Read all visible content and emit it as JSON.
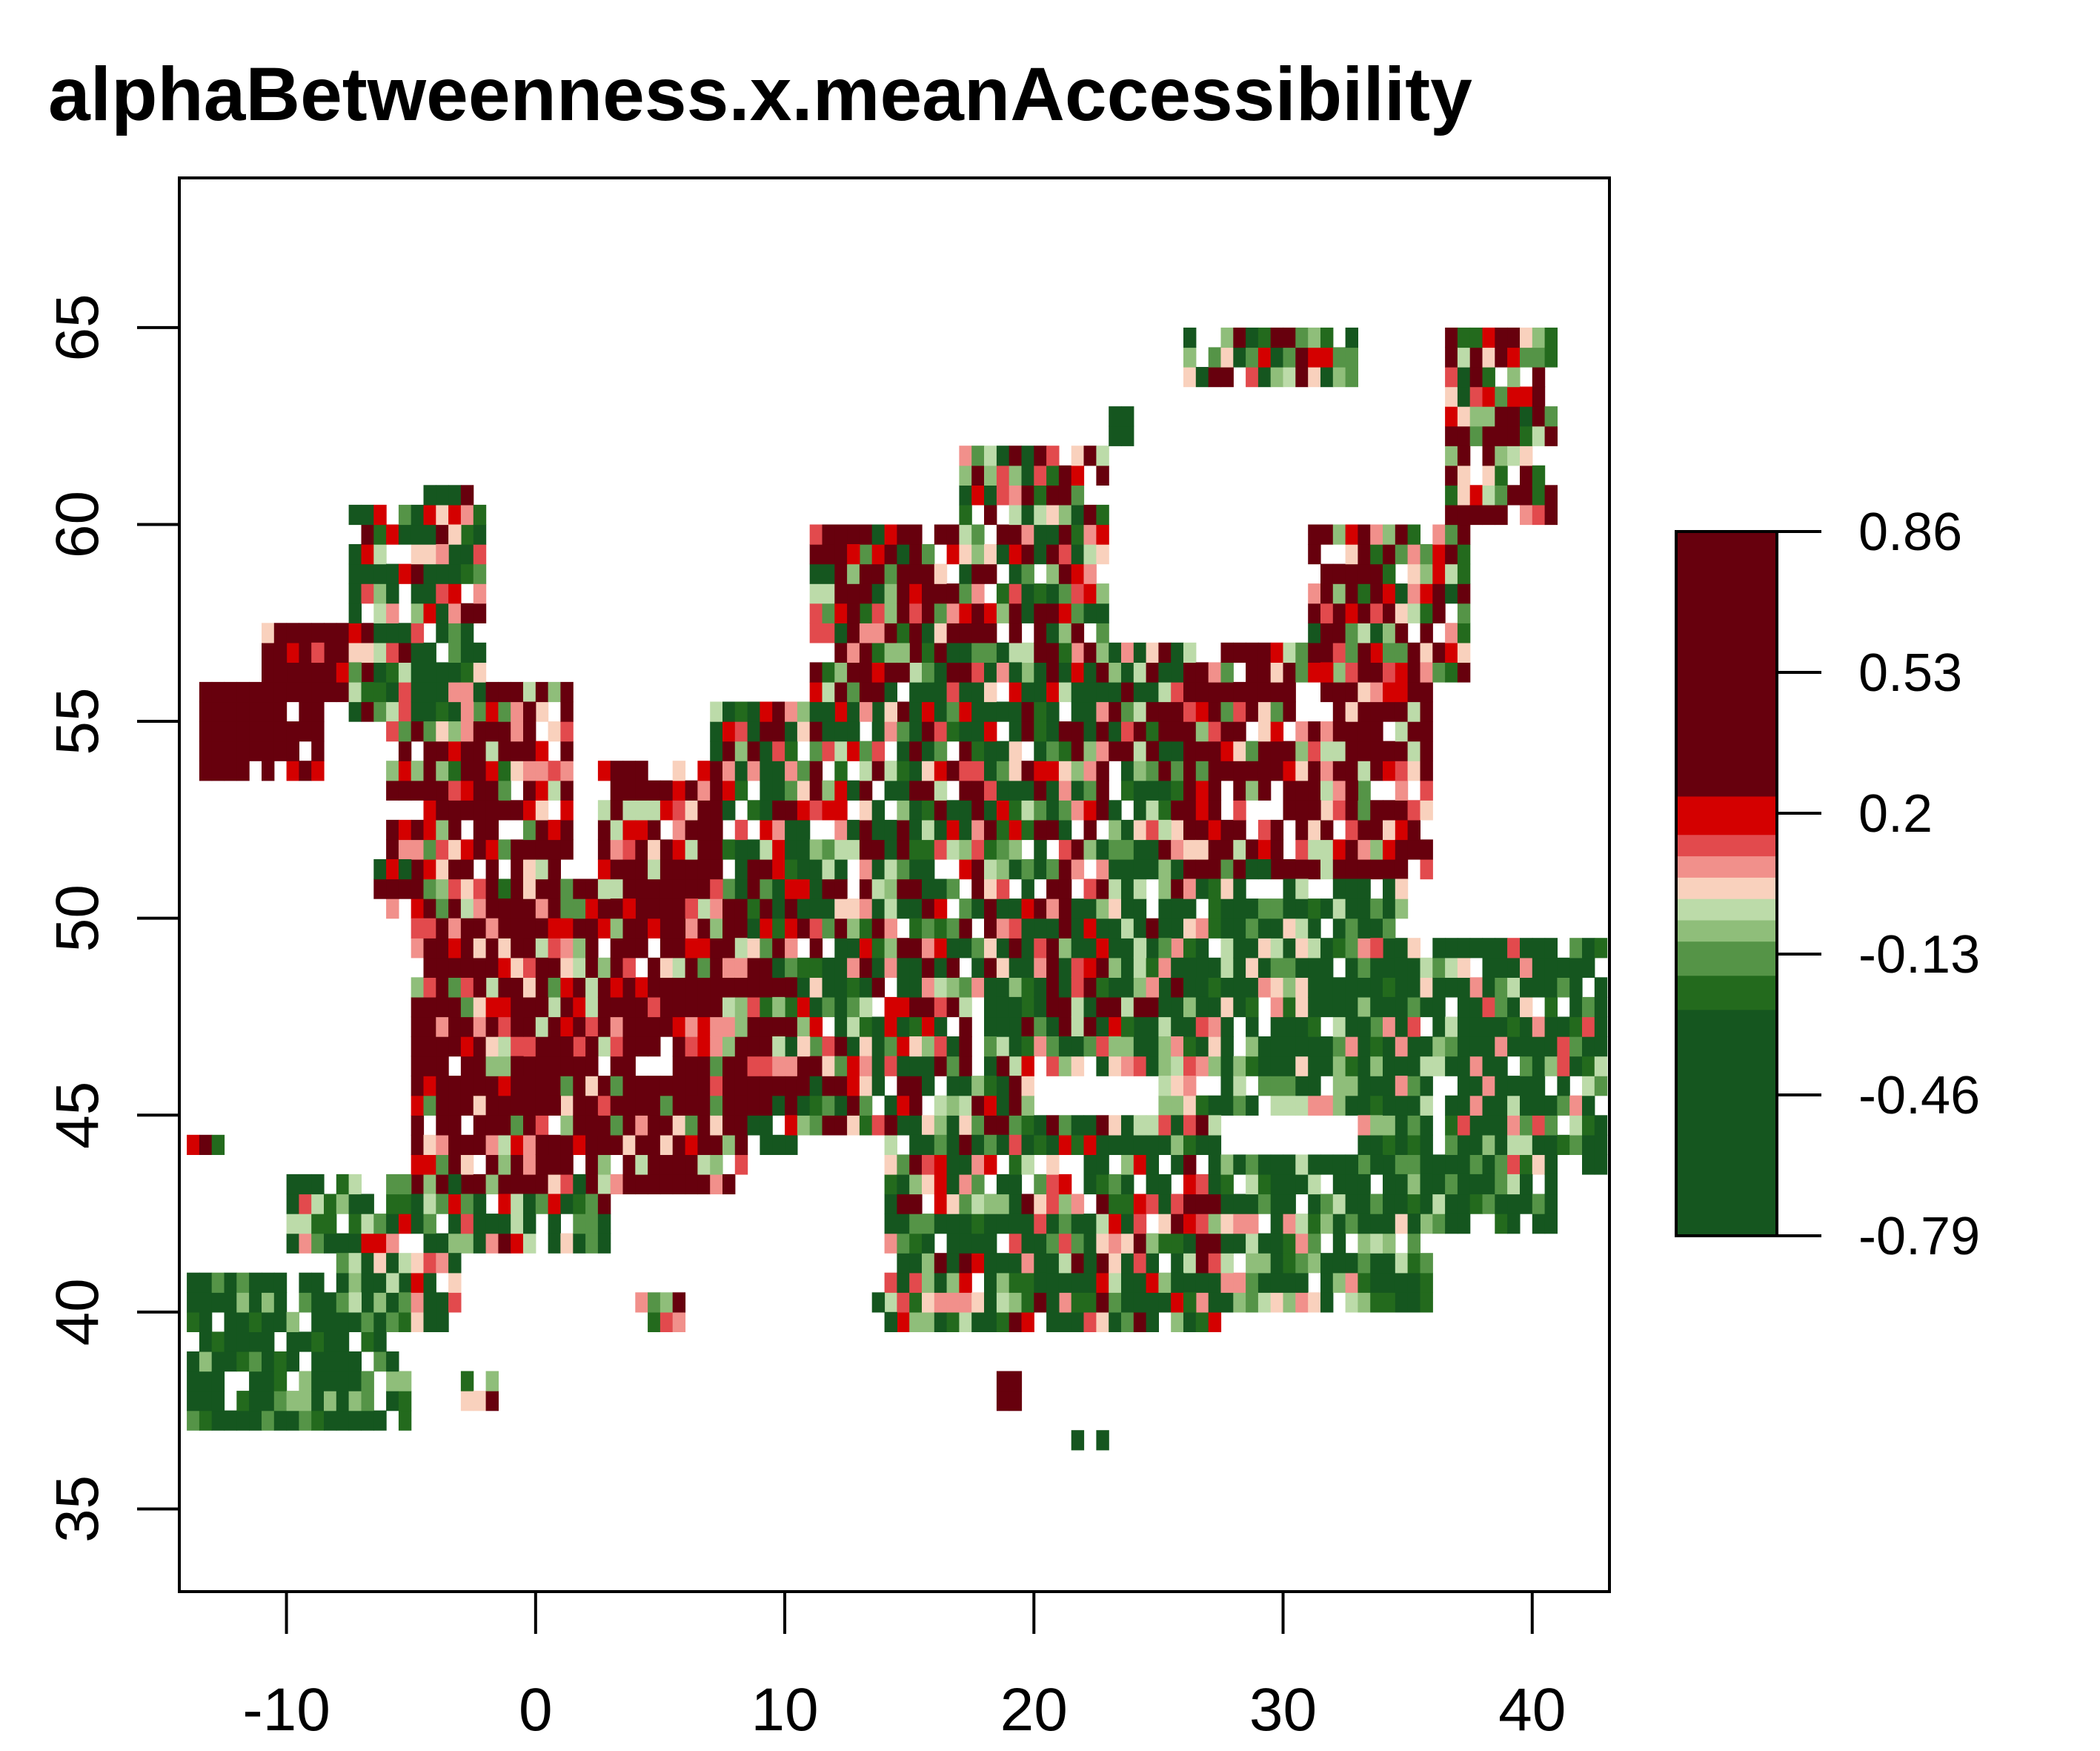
{
  "chart_data": {
    "type": "heatmap",
    "title": "alphaBetweenness.x.meanAccessibility",
    "xlabel": "",
    "ylabel": "",
    "xlim": [
      -14.3,
      43.1
    ],
    "ylim": [
      32.9,
      68.8
    ],
    "x_ticks": [
      -10,
      0,
      10,
      20,
      30,
      40
    ],
    "x_tick_labels": [
      "-10",
      "0",
      "10",
      "20",
      "30",
      "40"
    ],
    "y_ticks": [
      35,
      40,
      45,
      50,
      55,
      60,
      65
    ],
    "y_tick_labels": [
      "35",
      "40",
      "45",
      "50",
      "55",
      "60",
      "65"
    ],
    "cell_size_degrees": 0.5,
    "legend": {
      "position": "right",
      "range": [
        -0.79,
        0.86
      ],
      "ticks": [
        0.86,
        0.53,
        0.2,
        -0.13,
        -0.46,
        -0.79
      ],
      "tick_labels": [
        "0.86",
        "0.53",
        "0.2",
        "-0.13",
        "-0.46",
        "-0.79"
      ],
      "bins": [
        {
          "from": -0.79,
          "to": -0.26,
          "color": "#15561f"
        },
        {
          "from": -0.26,
          "to": -0.18,
          "color": "#236a1d"
        },
        {
          "from": -0.18,
          "to": -0.1,
          "color": "#559447"
        },
        {
          "from": -0.1,
          "to": -0.05,
          "color": "#8fbe7a"
        },
        {
          "from": -0.05,
          "to": 0.0,
          "color": "#bcdba9"
        },
        {
          "from": 0.0,
          "to": 0.05,
          "color": "#f9d1bd"
        },
        {
          "from": 0.05,
          "to": 0.1,
          "color": "#f1908b"
        },
        {
          "from": 0.1,
          "to": 0.15,
          "color": "#e24a4d"
        },
        {
          "from": 0.15,
          "to": 0.24,
          "color": "#d40000"
        },
        {
          "from": 0.24,
          "to": 0.86,
          "color": "#67000d"
        }
      ]
    },
    "regions": [
      {
        "x": [
          -13.5,
          -8.5
        ],
        "y": [
          53.5,
          56.0
        ],
        "center": 0.45,
        "spread": 0.25
      },
      {
        "x": [
          -10.0,
          -7.5
        ],
        "y": [
          55.5,
          57.5
        ],
        "center": 0.45,
        "spread": 0.25
      },
      {
        "x": [
          -11.0,
          -6.5
        ],
        "y": [
          56.0,
          57.5
        ],
        "center": 0.3,
        "spread": 0.4
      },
      {
        "x": [
          -7.5,
          -2.0
        ],
        "y": [
          55.0,
          60.5
        ],
        "center": -0.2,
        "spread": 0.5
      },
      {
        "x": [
          -4.5,
          -2.5
        ],
        "y": [
          59.0,
          61.0
        ],
        "center": 0.0,
        "spread": 0.6
      },
      {
        "x": [
          -6.0,
          1.5
        ],
        "y": [
          50.0,
          56.0
        ],
        "center": 0.3,
        "spread": 0.5
      },
      {
        "x": [
          -4.5,
          0.0
        ],
        "y": [
          52.5,
          55.5
        ],
        "center": 0.55,
        "spread": 0.3
      },
      {
        "x": [
          -6.5,
          -3.5
        ],
        "y": [
          50.5,
          51.5
        ],
        "center": 0.0,
        "spread": 0.5
      },
      {
        "x": [
          -5.0,
          8.5
        ],
        "y": [
          43.0,
          51.0
        ],
        "center": 0.3,
        "spread": 0.45
      },
      {
        "x": [
          -2.5,
          2.5
        ],
        "y": [
          44.0,
          50.5
        ],
        "center": 0.45,
        "spread": 0.3
      },
      {
        "x": [
          -1.0,
          2.5
        ],
        "y": [
          44.5,
          47.0
        ],
        "center": 0.6,
        "spread": 0.2
      },
      {
        "x": [
          2.5,
          7.5
        ],
        "y": [
          49.5,
          54.0
        ],
        "center": 0.35,
        "spread": 0.4
      },
      {
        "x": [
          6.0,
          10.5
        ],
        "y": [
          44.0,
          50.5
        ],
        "center": 0.1,
        "spread": 0.55
      },
      {
        "x": [
          7.0,
          15.5
        ],
        "y": [
          46.5,
          55.5
        ],
        "center": -0.1,
        "spread": 0.55
      },
      {
        "x": [
          15.0,
          26.0
        ],
        "y": [
          47.0,
          57.0
        ],
        "center": -0.05,
        "spread": 0.55
      },
      {
        "x": [
          24.0,
          36.0
        ],
        "y": [
          51.0,
          57.0
        ],
        "center": 0.3,
        "spread": 0.45
      },
      {
        "x": [
          30.0,
          33.5
        ],
        "y": [
          52.5,
          55.0
        ],
        "center": 0.5,
        "spread": 0.3
      },
      {
        "x": [
          18.0,
          27.0
        ],
        "y": [
          46.0,
          50.0
        ],
        "center": -0.25,
        "spread": 0.4
      },
      {
        "x": [
          25.0,
          35.0
        ],
        "y": [
          45.0,
          51.5
        ],
        "center": -0.3,
        "spread": 0.4
      },
      {
        "x": [
          33.0,
          43.0
        ],
        "y": [
          43.5,
          49.5
        ],
        "center": -0.3,
        "spread": 0.45
      },
      {
        "x": [
          11.0,
          18.0
        ],
        "y": [
          55.0,
          60.0
        ],
        "center": 0.15,
        "spread": 0.5
      },
      {
        "x": [
          12.0,
          14.5
        ],
        "y": [
          57.5,
          60.0
        ],
        "center": 0.4,
        "spread": 0.3
      },
      {
        "x": [
          17.0,
          23.0
        ],
        "y": [
          55.5,
          62.0
        ],
        "center": 0.0,
        "spread": 0.5
      },
      {
        "x": [
          31.0,
          37.5
        ],
        "y": [
          56.0,
          60.0
        ],
        "center": 0.2,
        "spread": 0.5
      },
      {
        "x": [
          10.0,
          20.0
        ],
        "y": [
          44.5,
          47.0
        ],
        "center": 0.0,
        "spread": 0.55
      },
      {
        "x": [
          14.0,
          27.5
        ],
        "y": [
          39.5,
          45.0
        ],
        "center": -0.15,
        "spread": 0.5
      },
      {
        "x": [
          19.0,
          27.5
        ],
        "y": [
          39.5,
          42.0
        ],
        "center": -0.35,
        "spread": 0.35
      },
      {
        "x": [
          -10.0,
          3.0
        ],
        "y": [
          41.5,
          43.5
        ],
        "center": -0.2,
        "spread": 0.5
      },
      {
        "x": [
          -14.0,
          -5.0
        ],
        "y": [
          37.0,
          41.0
        ],
        "center": -0.4,
        "spread": 0.35
      },
      {
        "x": [
          -8.0,
          -3.0
        ],
        "y": [
          39.5,
          41.5
        ],
        "center": -0.2,
        "spread": 0.45
      },
      {
        "x": [
          27.0,
          36.0
        ],
        "y": [
          40.0,
          44.0
        ],
        "center": -0.3,
        "spread": 0.4
      },
      {
        "x": [
          34.0,
          41.0
        ],
        "y": [
          42.0,
          44.5
        ],
        "center": -0.35,
        "spread": 0.35
      },
      {
        "x": [
          26.0,
          33.0
        ],
        "y": [
          63.5,
          65.0
        ],
        "center": 0.0,
        "spread": 0.5
      },
      {
        "x": [
          36.5,
          41.0
        ],
        "y": [
          60.0,
          65.0
        ],
        "center": 0.2,
        "spread": 0.5
      },
      {
        "x": [
          13.5,
          14.5
        ],
        "y": [
          39.5,
          40.5
        ],
        "center": -0.5,
        "spread": 0.1
      },
      {
        "x": [
          -3.0,
          -1.5
        ],
        "y": [
          37.5,
          38.5
        ],
        "center": 0.1,
        "spread": 0.4
      },
      {
        "x": [
          4.0,
          6.0
        ],
        "y": [
          39.5,
          40.5
        ],
        "center": 0.0,
        "spread": 0.5
      },
      {
        "x": [
          18.5,
          19.5
        ],
        "y": [
          37.5,
          38.5
        ],
        "center": 0.2,
        "spread": 0.3
      },
      {
        "x": [
          21.5,
          23.0
        ],
        "y": [
          36.5,
          37.0
        ],
        "center": -0.4,
        "spread": 0.2
      },
      {
        "x": [
          23.0,
          24.0
        ],
        "y": [
          62.0,
          63.0
        ],
        "center": -0.5,
        "spread": 0.1
      },
      {
        "x": [
          -14.0,
          -12.0
        ],
        "y": [
          44.0,
          44.5
        ],
        "center": 0.0,
        "spread": 0.5
      }
    ]
  }
}
